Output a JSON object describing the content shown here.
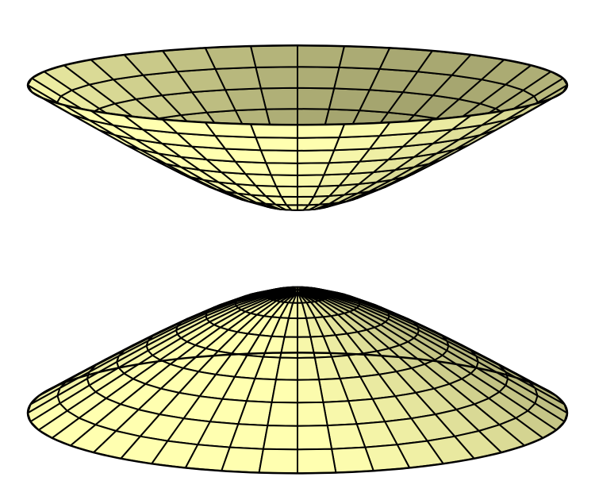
{
  "surface": {
    "colors": {
      "light": "#ffffb0",
      "dark": "#8a8a5c",
      "edge": "#000000",
      "background": "#ffffff"
    }
  }
}
